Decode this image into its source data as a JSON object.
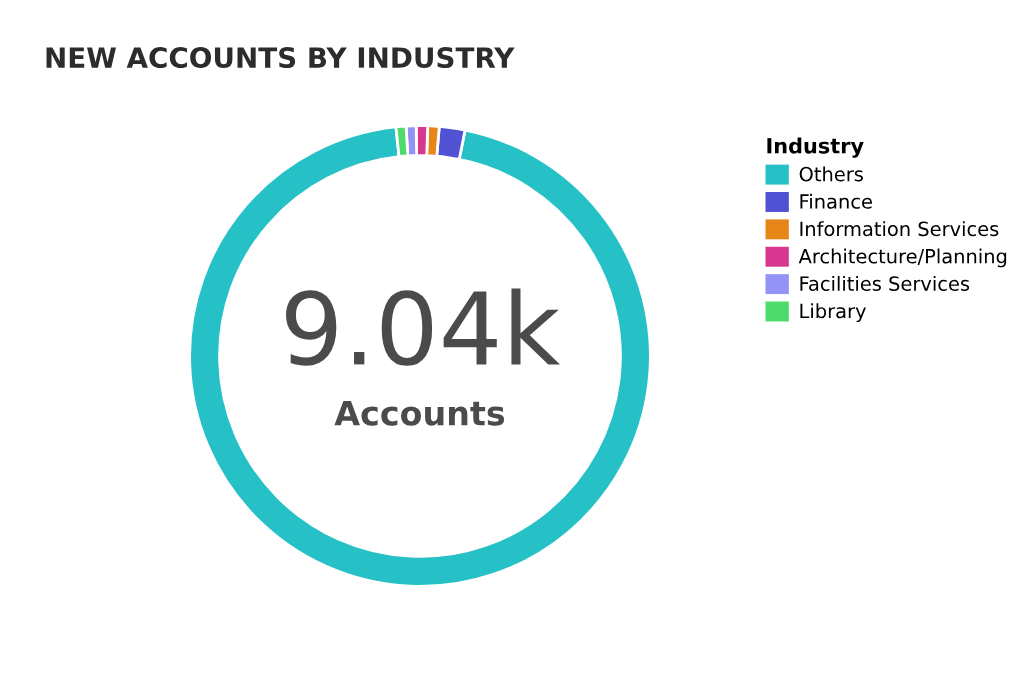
{
  "chart_data": {
    "type": "donut",
    "title": "NEW ACCOUNTS BY INDUSTRY",
    "legend_title": "Industry",
    "legend": "right",
    "categories": [
      "Others",
      "Finance",
      "Information Services",
      "Architecture/Planning",
      "Facilities Services",
      "Library"
    ],
    "values": [
      95.2,
      1.8,
      0.8,
      0.8,
      0.7,
      0.7
    ],
    "colors": [
      "#26c0c7",
      "#5151d3",
      "#e68619",
      "#d83790",
      "#9393f7",
      "#4ddc6c"
    ],
    "annotations": [
      "9.04k",
      "Accounts"
    ]
  }
}
